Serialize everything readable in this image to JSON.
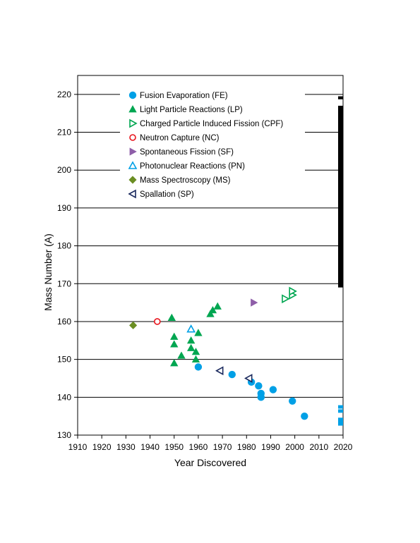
{
  "chart_data": {
    "type": "scatter",
    "xlabel": "Year Discovered",
    "ylabel": "Mass Number (A)",
    "xlim": [
      1910,
      2020
    ],
    "ylim": [
      130,
      225
    ],
    "x_ticks": [
      1910,
      1920,
      1930,
      1940,
      1950,
      1960,
      1970,
      1980,
      1990,
      2000,
      2010,
      2020
    ],
    "y_ticks": [
      130,
      140,
      150,
      160,
      170,
      180,
      190,
      200,
      210,
      220
    ],
    "grid": "horizontal",
    "legend_position": "top-left",
    "series": [
      {
        "name": "Fusion Evaporation (FE)",
        "marker": "circle-filled",
        "color": "#00a0e6",
        "points": [
          [
            1960,
            148
          ],
          [
            1974,
            146
          ],
          [
            1982,
            144
          ],
          [
            1985,
            143
          ],
          [
            1986,
            141
          ],
          [
            1986,
            140
          ],
          [
            1991,
            142
          ],
          [
            1999,
            139
          ],
          [
            2004,
            135
          ]
        ]
      },
      {
        "name": "Light Particle Reactions (LP)",
        "marker": "triangle-up-filled",
        "color": "#00a651",
        "points": [
          [
            1949,
            161
          ],
          [
            1950,
            156
          ],
          [
            1950,
            154
          ],
          [
            1950,
            149
          ],
          [
            1953,
            151
          ],
          [
            1957,
            155
          ],
          [
            1957,
            153
          ],
          [
            1959,
            152
          ],
          [
            1959,
            150
          ],
          [
            1960,
            157
          ],
          [
            1965,
            162
          ],
          [
            1966,
            163
          ],
          [
            1968,
            164
          ]
        ]
      },
      {
        "name": "Charged Particle Induced Fission (CPF)",
        "marker": "triangle-right-open",
        "color": "#00a651",
        "points": [
          [
            1996,
            166
          ],
          [
            1999,
            167
          ],
          [
            1999,
            168
          ]
        ]
      },
      {
        "name": "Neutron Capture (NC)",
        "marker": "circle-open",
        "color": "#e8141c",
        "points": [
          [
            1943,
            160
          ]
        ]
      },
      {
        "name": "Spontaneous Fission (SF)",
        "marker": "triangle-right-filled",
        "color": "#8e5ea8",
        "points": [
          [
            1983,
            165
          ]
        ]
      },
      {
        "name": "Photonuclear Reactions (PN)",
        "marker": "triangle-up-open",
        "color": "#00a0e6",
        "points": [
          [
            1957,
            158
          ]
        ]
      },
      {
        "name": "Mass Spectroscopy (MS)",
        "marker": "diamond-filled",
        "color": "#6b8e23",
        "points": [
          [
            1933,
            159
          ]
        ]
      },
      {
        "name": "Spallation (SP)",
        "marker": "triangle-left-open",
        "color": "#1b2a5e",
        "points": [
          [
            1969,
            147
          ],
          [
            1981,
            145
          ]
        ]
      }
    ],
    "right_edge_bars": [
      {
        "color": "#000000",
        "x": 2019,
        "from": 169,
        "to": 217
      },
      {
        "color": "#000000",
        "x": 2019,
        "from": 218.7,
        "to": 219.5
      },
      {
        "color": "#00a0e6",
        "x": 2019,
        "from": 132.5,
        "to": 134
      },
      {
        "color": "#00a0e6",
        "x": 2019,
        "from": 133.6,
        "to": 134.6
      },
      {
        "color": "#00a0e6",
        "x": 2019,
        "from": 135.9,
        "to": 136.8
      },
      {
        "color": "#00a0e6",
        "x": 2019,
        "from": 137,
        "to": 137.9
      }
    ]
  }
}
